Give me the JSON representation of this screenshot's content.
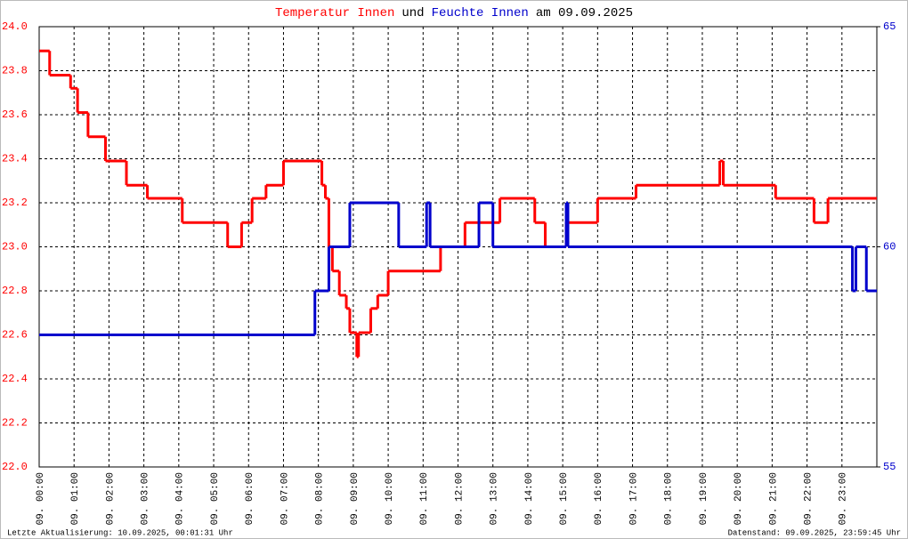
{
  "chart_data": {
    "type": "step",
    "title_parts": [
      {
        "text": "Temperatur Innen",
        "color": "#ff0000"
      },
      {
        "text": "und",
        "color": "#000000"
      },
      {
        "text": "Feuchte Innen",
        "color": "#0000cc"
      },
      {
        "text": "am 09.09.2025",
        "color": "#000000"
      }
    ],
    "footer_left": "Letzte Aktualisierung: 10.09.2025, 00:01:31 Uhr",
    "footer_right": "Datenstand: 09.09.2025, 23:59:45 Uhr",
    "xlim": [
      0,
      24
    ],
    "xticks": [
      {
        "value": 0,
        "label": "09. 00:00"
      },
      {
        "value": 1,
        "label": "09. 01:00"
      },
      {
        "value": 2,
        "label": "09. 02:00"
      },
      {
        "value": 3,
        "label": "09. 03:00"
      },
      {
        "value": 4,
        "label": "09. 04:00"
      },
      {
        "value": 5,
        "label": "09. 05:00"
      },
      {
        "value": 6,
        "label": "09. 06:00"
      },
      {
        "value": 7,
        "label": "09. 07:00"
      },
      {
        "value": 8,
        "label": "09. 08:00"
      },
      {
        "value": 9,
        "label": "09. 09:00"
      },
      {
        "value": 10,
        "label": "09. 10:00"
      },
      {
        "value": 11,
        "label": "09. 11:00"
      },
      {
        "value": 12,
        "label": "09. 12:00"
      },
      {
        "value": 13,
        "label": "09. 13:00"
      },
      {
        "value": 14,
        "label": "09. 14:00"
      },
      {
        "value": 15,
        "label": "09. 15:00"
      },
      {
        "value": 16,
        "label": "09. 16:00"
      },
      {
        "value": 17,
        "label": "09. 17:00"
      },
      {
        "value": 18,
        "label": "09. 18:00"
      },
      {
        "value": 19,
        "label": "09. 19:00"
      },
      {
        "value": 20,
        "label": "09. 20:00"
      },
      {
        "value": 21,
        "label": "09. 21:00"
      },
      {
        "value": 22,
        "label": "09. 22:00"
      },
      {
        "value": 23,
        "label": "09. 23:00"
      }
    ],
    "ylim": [
      22,
      24
    ],
    "yticks": [
      {
        "value": 22,
        "label": "22.0"
      },
      {
        "value": 22.2,
        "label": "22.2"
      },
      {
        "value": 22.4,
        "label": "22.4"
      },
      {
        "value": 22.6,
        "label": "22.6"
      },
      {
        "value": 22.8,
        "label": "22.8"
      },
      {
        "value": 23,
        "label": "23.0"
      },
      {
        "value": 23.2,
        "label": "23.2"
      },
      {
        "value": 23.4,
        "label": "23.4"
      },
      {
        "value": 23.6,
        "label": "23.6"
      },
      {
        "value": 23.8,
        "label": "23.8"
      },
      {
        "value": 24,
        "label": "24.0"
      }
    ],
    "y2lim": [
      55,
      65
    ],
    "y2ticks": [
      55,
      60,
      65
    ],
    "grid": true,
    "series": [
      {
        "name": "Temperatur Innen",
        "color": "#ff0000",
        "axis": "y",
        "x": [
          0,
          0.3,
          0.9,
          1.1,
          1.4,
          1.9,
          2.5,
          3.1,
          4.1,
          5.4,
          5.8,
          6.1,
          6.5,
          7.0,
          8.1,
          8.2,
          8.3,
          8.4,
          8.6,
          8.8,
          8.9,
          9.1,
          9.15,
          9.5,
          9.7,
          10.0,
          11.5,
          12.2,
          13.2,
          14.2,
          14.5,
          15.1,
          16.0,
          17.1,
          19.5,
          19.6,
          21.1,
          22.2,
          22.6
        ],
        "values": [
          23.89,
          23.78,
          23.72,
          23.61,
          23.5,
          23.39,
          23.28,
          23.22,
          23.11,
          23.0,
          23.11,
          23.22,
          23.28,
          23.39,
          23.28,
          23.22,
          23.0,
          22.89,
          22.78,
          22.72,
          22.61,
          22.5,
          22.61,
          22.72,
          22.78,
          22.89,
          23.0,
          23.11,
          23.22,
          23.11,
          23.0,
          23.11,
          23.22,
          23.28,
          23.39,
          23.28,
          23.22,
          23.11,
          23.22
        ]
      },
      {
        "name": "Feuchte Innen",
        "color": "#0000cc",
        "axis": "y2",
        "x": [
          0,
          7.9,
          8.3,
          8.9,
          10.3,
          11.1,
          11.2,
          12.6,
          13.0,
          15.1,
          15.15,
          23.3,
          23.4,
          23.7
        ],
        "values": [
          58,
          59,
          60,
          61,
          60,
          61,
          60,
          61,
          60,
          61,
          60,
          59,
          60,
          59
        ]
      }
    ]
  }
}
